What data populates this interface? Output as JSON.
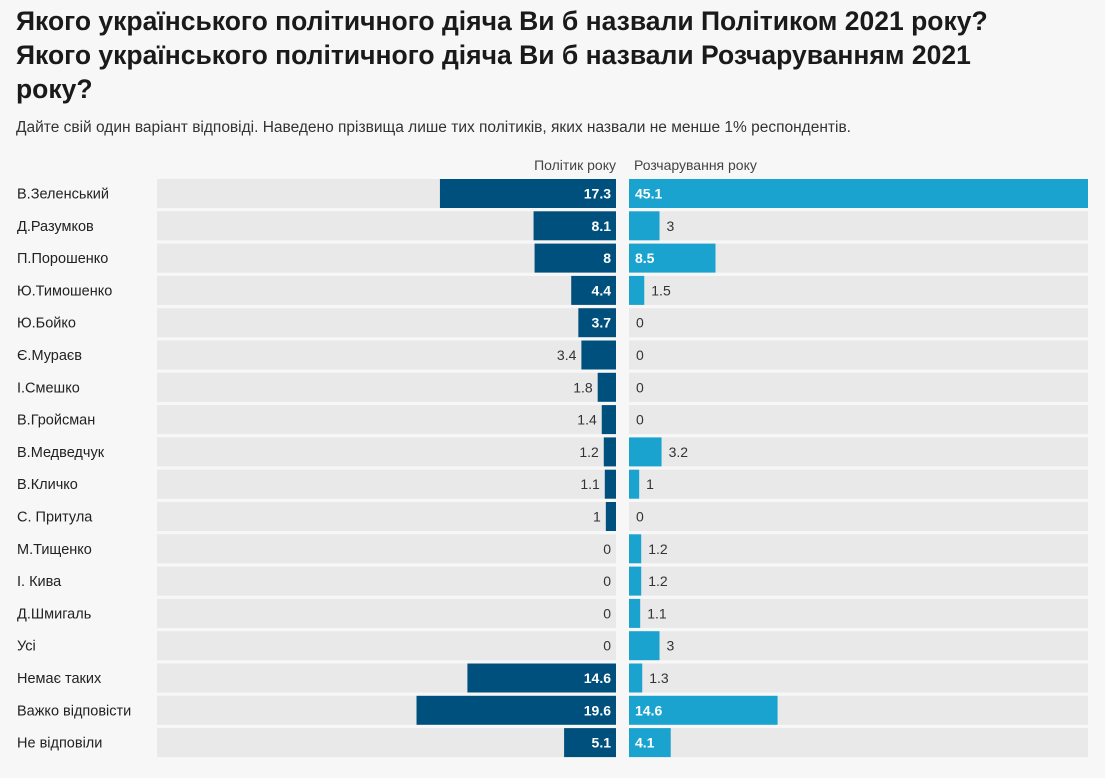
{
  "title_lines": [
    "Якого українського політичного діяча Ви б назвали Політиком 2021 року?",
    "Якого українського політичного діяча Ви б назвали Розчаруванням 2021",
    "року?"
  ],
  "subtitle": "Дайте свій один варіант відповіді. Наведено прізвища лише тих політиків, яких назвали не менше 1% респондентів.",
  "colors": {
    "politician": "#00507d",
    "disappointment": "#1ba3d0",
    "track": "#e9e9ea",
    "background": "#f7f7f7"
  },
  "chart_data": {
    "type": "bar",
    "orientation": "horizontal",
    "categories": [
      "В.Зеленський",
      "Д.Разумков",
      "П.Порошенко",
      "Ю.Тимошенко",
      "Ю.Бойко",
      "Є.Мураєв",
      "І.Смешко",
      "В.Гройсман",
      "В.Медведчук",
      "В.Кличко",
      "С. Притула",
      "М.Тищенко",
      "І. Кива",
      "Д.Шмигаль",
      "Усі",
      "Немає таких",
      "Важко відповісти",
      "Не відповіли"
    ],
    "series": [
      {
        "name": "Політик року",
        "values": [
          17.3,
          8.1,
          8,
          4.4,
          3.7,
          3.4,
          1.8,
          1.4,
          1.2,
          1.1,
          1,
          0,
          0,
          0,
          0,
          14.6,
          19.6,
          5.1
        ]
      },
      {
        "name": "Розчарування року",
        "values": [
          45.1,
          3,
          8.5,
          1.5,
          0,
          0,
          0,
          0,
          3.2,
          1,
          0,
          1.2,
          1.2,
          1.1,
          3,
          1.3,
          14.6,
          4.1
        ]
      }
    ],
    "value_labels": [
      [
        "17.3",
        "8.1",
        "8",
        "4.4",
        "3.7",
        "3.4",
        "1.8",
        "1.4",
        "1.2",
        "1.1",
        "1",
        "0",
        "0",
        "0",
        "0",
        "14.6",
        "19.6",
        "5.1"
      ],
      [
        "45.1",
        "3",
        "8.5",
        "1.5",
        "0",
        "0",
        "0",
        "0",
        "3.2",
        "1",
        "0",
        "1.2",
        "1.2",
        "1.1",
        "3",
        "1.3",
        "14.6",
        "4.1"
      ]
    ],
    "xlim": [
      0,
      45.1
    ],
    "grid": false,
    "legend": "column headers"
  }
}
